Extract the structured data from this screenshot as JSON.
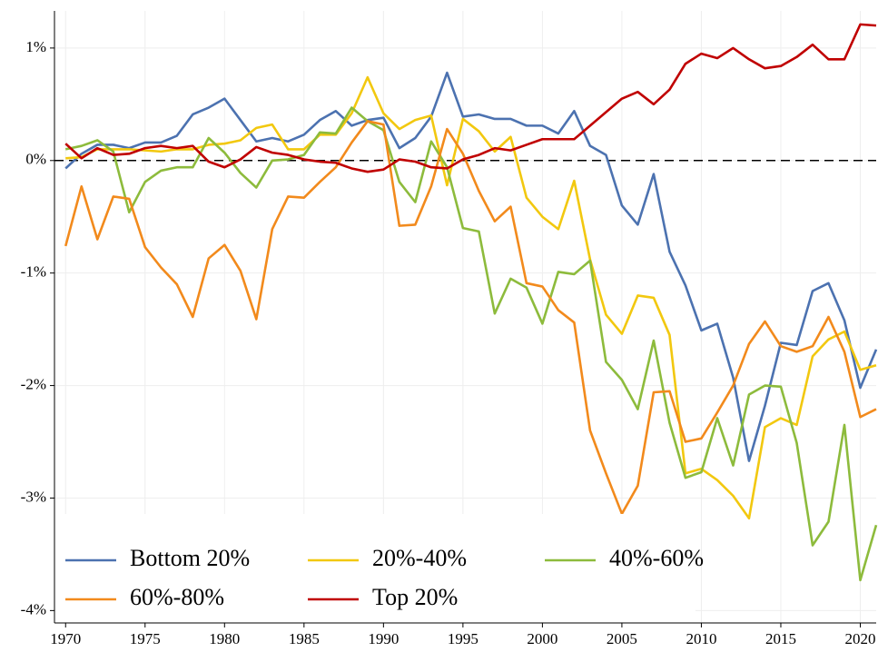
{
  "chart_data": {
    "type": "line",
    "x": [
      1970,
      1971,
      1972,
      1973,
      1974,
      1975,
      1976,
      1977,
      1978,
      1979,
      1980,
      1981,
      1982,
      1983,
      1984,
      1985,
      1986,
      1987,
      1988,
      1989,
      1990,
      1991,
      1992,
      1993,
      1994,
      1995,
      1996,
      1997,
      1998,
      1999,
      2000,
      2001,
      2002,
      2003,
      2004,
      2005,
      2006,
      2007,
      2008,
      2009,
      2010,
      2011,
      2012,
      2013,
      2014,
      2015,
      2016,
      2017,
      2018,
      2019,
      2020,
      2021
    ],
    "series": [
      {
        "name": "Bottom 20%",
        "color": "#4c72b0",
        "values": [
          -0.07,
          0.06,
          0.14,
          0.14,
          0.11,
          0.16,
          0.16,
          0.22,
          0.41,
          0.47,
          0.55,
          0.36,
          0.17,
          0.2,
          0.17,
          0.23,
          0.36,
          0.44,
          0.31,
          0.36,
          0.38,
          0.11,
          0.2,
          0.39,
          0.78,
          0.39,
          0.41,
          0.37,
          0.37,
          0.31,
          0.31,
          0.24,
          0.44,
          0.13,
          0.05,
          -0.4,
          -0.57,
          -0.12,
          -0.81,
          -1.11,
          -1.51,
          -1.45,
          -1.93,
          -2.67,
          -2.18,
          -1.62,
          -1.64,
          -1.16,
          -1.09,
          -1.42,
          -2.02,
          -1.68
        ]
      },
      {
        "name": "20%-40%",
        "color": "#f2c80f",
        "values": [
          0.02,
          0.03,
          0.1,
          0.1,
          0.1,
          0.09,
          0.08,
          0.1,
          0.1,
          0.14,
          0.15,
          0.18,
          0.29,
          0.32,
          0.1,
          0.1,
          0.23,
          0.23,
          0.42,
          0.74,
          0.42,
          0.28,
          0.36,
          0.4,
          -0.22,
          0.37,
          0.26,
          0.08,
          0.21,
          -0.33,
          -0.5,
          -0.61,
          -0.18,
          -0.88,
          -1.37,
          -1.54,
          -1.2,
          -1.22,
          -1.55,
          -2.78,
          -2.74,
          -2.84,
          -2.98,
          -3.18,
          -2.37,
          -2.29,
          -2.35,
          -1.74,
          -1.59,
          -1.52,
          -1.86,
          -1.82
        ]
      },
      {
        "name": "40%-60%",
        "color": "#8dbb3c",
        "values": [
          0.1,
          0.13,
          0.18,
          0.08,
          -0.46,
          -0.19,
          -0.09,
          -0.06,
          -0.06,
          0.2,
          0.07,
          -0.11,
          -0.24,
          0.0,
          0.01,
          0.05,
          0.25,
          0.24,
          0.47,
          0.35,
          0.27,
          -0.19,
          -0.37,
          0.17,
          -0.06,
          -0.6,
          -0.63,
          -1.36,
          -1.05,
          -1.13,
          -1.45,
          -0.99,
          -1.01,
          -0.89,
          -1.79,
          -1.95,
          -2.21,
          -1.6,
          -2.33,
          -2.82,
          -2.77,
          -2.29,
          -2.71,
          -2.08,
          -2.0,
          -2.01,
          -2.51,
          -3.42,
          -3.21,
          -2.35,
          -3.73,
          -3.24
        ]
      },
      {
        "name": "60%-80%",
        "color": "#f28a1c",
        "values": [
          -0.76,
          -0.23,
          -0.7,
          -0.32,
          -0.34,
          -0.77,
          -0.95,
          -1.1,
          -1.39,
          -0.87,
          -0.75,
          -0.98,
          -1.41,
          -0.61,
          -0.32,
          -0.33,
          -0.19,
          -0.06,
          0.16,
          0.35,
          0.32,
          -0.58,
          -0.57,
          -0.23,
          0.28,
          0.06,
          -0.27,
          -0.54,
          -0.41,
          -1.09,
          -1.12,
          -1.33,
          -1.44,
          -2.4,
          -2.78,
          -3.14,
          -2.89,
          -2.06,
          -2.05,
          -2.5,
          -2.47,
          -2.24,
          -2.0,
          -1.63,
          -1.43,
          -1.65,
          -1.7,
          -1.65,
          -1.39,
          -1.7,
          -2.28,
          -2.21
        ]
      },
      {
        "name": "Top 20%",
        "color": "#c00000",
        "values": [
          0.15,
          0.02,
          0.11,
          0.05,
          0.06,
          0.11,
          0.13,
          0.11,
          0.13,
          -0.01,
          -0.06,
          0.01,
          0.12,
          0.07,
          0.05,
          0.01,
          -0.01,
          -0.02,
          -0.07,
          -0.1,
          -0.08,
          0.01,
          -0.01,
          -0.06,
          -0.07,
          0.01,
          0.05,
          0.11,
          0.09,
          0.14,
          0.19,
          0.19,
          0.19,
          0.31,
          0.43,
          0.55,
          0.61,
          0.5,
          0.63,
          0.86,
          0.95,
          0.91,
          1.0,
          0.9,
          0.82,
          0.84,
          0.92,
          1.03,
          0.9,
          0.9,
          1.21,
          1.2
        ]
      }
    ],
    "xlim": [
      1969.3,
      2021
    ],
    "ylim": [
      -4.11,
      1.33
    ],
    "xticks": [
      1970,
      1975,
      1980,
      1985,
      1990,
      1995,
      2000,
      2005,
      2010,
      2015,
      2020
    ],
    "yticks": [
      {
        "value": 1,
        "label": "1%"
      },
      {
        "value": 0,
        "label": "0%"
      },
      {
        "value": -1,
        "label": "-1%"
      },
      {
        "value": -2,
        "label": "-2%"
      },
      {
        "value": -3,
        "label": "-3%"
      },
      {
        "value": -4,
        "label": "-4%"
      }
    ],
    "hline": 0,
    "grid": true,
    "legend": "lower left"
  }
}
